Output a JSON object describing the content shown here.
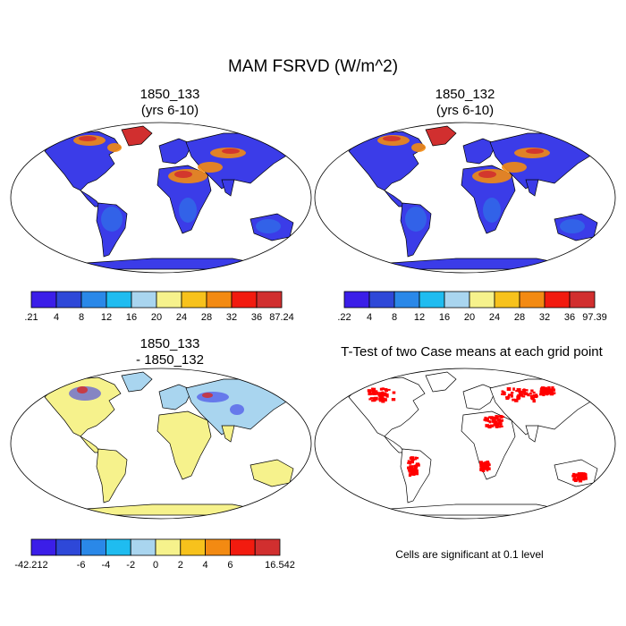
{
  "title": "MAM FSRVD (W/m^2)",
  "panels": [
    {
      "line1": "1850_133",
      "line2": "(yrs 6-10)"
    },
    {
      "line1": "1850_132",
      "line2": "(yrs 6-10)"
    },
    {
      "line1": "1850_133",
      "line2": "- 1850_132"
    },
    {
      "line1": "T-Test of two Case means at each grid point",
      "line2": ""
    }
  ],
  "colorbars": [
    {
      "colors": [
        "#3b1ee8",
        "#2e48d8",
        "#2a88e8",
        "#1fbcf0",
        "#a9d5ef",
        "#f6f28c",
        "#f7c21c",
        "#f38a12",
        "#f21b0f",
        "#d12f2f"
      ],
      "labels": [
        ".21",
        "4",
        "8",
        "12",
        "16",
        "20",
        "24",
        "28",
        "32",
        "36",
        "87.24"
      ]
    },
    {
      "colors": [
        "#3b1ee8",
        "#2e48d8",
        "#2a88e8",
        "#1fbcf0",
        "#a9d5ef",
        "#f6f28c",
        "#f7c21c",
        "#f38a12",
        "#f21b0f",
        "#d12f2f"
      ],
      "labels": [
        ".22",
        "4",
        "8",
        "12",
        "16",
        "20",
        "24",
        "28",
        "32",
        "36",
        "97.39"
      ]
    },
    {
      "colors": [
        "#3b1ee8",
        "#2e48d8",
        "#2a88e8",
        "#1fbcf0",
        "#a9d5ef",
        "#f6f28c",
        "#f7c21c",
        "#f38a12",
        "#f21b0f",
        "#d12f2f"
      ],
      "labels": [
        "-42.212",
        "",
        "-6",
        "-4",
        "-2",
        "0",
        "2",
        "4",
        "6",
        "",
        "16.542"
      ]
    }
  ],
  "footnote": "Cells are significant at 0.1 level",
  "map_colors": {
    "ocean": "#ffffff",
    "outline": "#000000",
    "land_low": "#3b3ce8",
    "land_mid": "#2a88e8",
    "land_high": "#f38a12",
    "land_peak": "#d12f2f",
    "diff_base": "#f6f28c",
    "diff_blue": "#a9d5ef",
    "signif": "#ff0000"
  }
}
